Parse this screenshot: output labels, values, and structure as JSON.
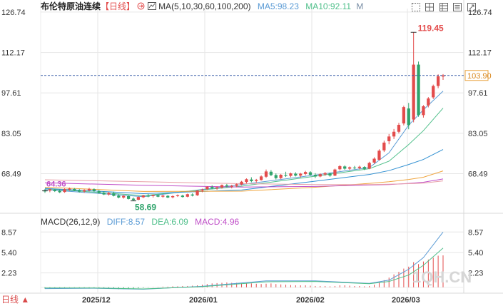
{
  "header": {
    "title": "布伦特原油连续",
    "period": "【日线】",
    "ma_label": "MA(5,10,30,60,100,200)",
    "ma5": "MA5:98.23",
    "ma10": "MA10:92.11",
    "ma_toggle": "M"
  },
  "macd_header": {
    "label": "MACD(26,12,9)",
    "diff": "DIFF:8.57",
    "dea": "DEA:6.09",
    "macd": "MACD:4.96"
  },
  "footer": {
    "period_button": "日线 ▲"
  },
  "watermark": "1QH.CN",
  "toolbar_icons": [
    "dotted-square-icon",
    "grid-icon",
    "table-icon",
    "list-icon",
    "settings-icon"
  ],
  "colors": {
    "up": "#e34c4c",
    "down": "#2fa36b",
    "ma5": "#5b9bd5",
    "ma10": "#4fbf8a",
    "ma30": "#2f8fd1",
    "ma60": "#f0a640",
    "ma100": "#c04fc8",
    "ma200": "#e8a0a8",
    "current_line": "#3a5fa8",
    "grid": "#e6e6e6"
  },
  "chart_data": [
    {
      "type": "candlestick",
      "title": "布伦特原油连续",
      "period": "日线",
      "ylim": [
        55,
        128
      ],
      "yticks": [
        "126.74",
        "112.17",
        "97.61",
        "83.05",
        "68.49"
      ],
      "x_ticks": [
        "2025/12",
        "2026/01",
        "2026/02",
        "2026/03"
      ],
      "current_price": "103.90",
      "max_label": "119.45",
      "min_label": "58.69",
      "left_label": "64.36",
      "candles": [
        [
          62.6,
          63.0,
          61.6,
          62.1
        ],
        [
          62.4,
          63.1,
          61.8,
          62.9
        ],
        [
          62.7,
          63.0,
          61.9,
          62.2
        ],
        [
          62.3,
          62.8,
          61.5,
          61.8
        ],
        [
          61.9,
          63.2,
          61.6,
          62.9
        ],
        [
          62.8,
          63.5,
          62.3,
          63.1
        ],
        [
          63.0,
          63.3,
          62.2,
          62.4
        ],
        [
          62.5,
          63.0,
          61.7,
          62.0
        ],
        [
          62.1,
          62.9,
          61.6,
          62.6
        ],
        [
          62.5,
          63.4,
          62.1,
          63.0
        ],
        [
          62.9,
          63.2,
          61.9,
          62.2
        ],
        [
          62.2,
          62.7,
          61.3,
          61.5
        ],
        [
          61.6,
          62.2,
          60.8,
          61.0
        ],
        [
          61.0,
          61.9,
          60.6,
          61.6
        ],
        [
          61.5,
          62.0,
          60.3,
          60.5
        ],
        [
          60.6,
          61.1,
          59.6,
          59.9
        ],
        [
          59.9,
          60.8,
          59.5,
          60.5
        ],
        [
          60.4,
          60.7,
          59.2,
          59.4
        ],
        [
          59.5,
          59.9,
          58.69,
          59.0
        ],
        [
          59.1,
          60.3,
          58.9,
          60.1
        ],
        [
          60.0,
          60.9,
          59.7,
          60.6
        ],
        [
          60.5,
          61.2,
          60.0,
          60.3
        ],
        [
          60.4,
          61.0,
          59.9,
          60.8
        ],
        [
          60.7,
          61.1,
          60.0,
          60.2
        ],
        [
          60.2,
          60.9,
          59.8,
          60.6
        ],
        [
          60.5,
          60.8,
          59.7,
          59.9
        ],
        [
          60.0,
          60.7,
          59.6,
          60.4
        ],
        [
          60.4,
          61.0,
          60.1,
          60.7
        ],
        [
          60.6,
          60.9,
          59.9,
          60.1
        ],
        [
          60.2,
          61.3,
          60.0,
          61.1
        ],
        [
          61.0,
          61.4,
          60.3,
          60.6
        ],
        [
          60.7,
          62.6,
          60.5,
          62.4
        ],
        [
          62.4,
          63.1,
          61.8,
          62.8
        ],
        [
          62.9,
          64.0,
          62.6,
          63.8
        ],
        [
          63.7,
          64.3,
          62.9,
          63.2
        ],
        [
          63.2,
          63.9,
          62.7,
          63.6
        ],
        [
          63.5,
          64.6,
          63.1,
          64.4
        ],
        [
          64.3,
          64.8,
          63.6,
          63.9
        ],
        [
          63.8,
          64.5,
          63.2,
          64.1
        ],
        [
          64.1,
          65.0,
          63.6,
          64.7
        ],
        [
          64.6,
          65.9,
          64.3,
          65.6
        ],
        [
          65.5,
          66.8,
          65.0,
          66.5
        ],
        [
          66.4,
          67.2,
          65.4,
          65.8
        ],
        [
          65.9,
          66.6,
          65.2,
          66.3
        ],
        [
          66.2,
          67.9,
          66.0,
          67.5
        ],
        [
          67.4,
          70.0,
          67.0,
          69.3
        ],
        [
          69.2,
          69.8,
          67.6,
          68.0
        ],
        [
          68.0,
          68.6,
          66.4,
          66.9
        ],
        [
          66.9,
          68.4,
          66.5,
          68.1
        ],
        [
          68.0,
          69.2,
          67.3,
          67.7
        ],
        [
          67.7,
          68.9,
          67.2,
          68.6
        ],
        [
          68.5,
          69.0,
          67.5,
          67.8
        ],
        [
          67.8,
          68.8,
          67.1,
          68.5
        ],
        [
          68.4,
          69.5,
          67.9,
          69.1
        ],
        [
          69.0,
          69.4,
          67.8,
          68.1
        ],
        [
          68.1,
          68.7,
          66.9,
          67.5
        ],
        [
          67.5,
          68.6,
          67.2,
          68.3
        ],
        [
          68.2,
          69.1,
          67.7,
          68.7
        ],
        [
          68.6,
          68.9,
          67.4,
          67.8
        ],
        [
          67.8,
          70.3,
          67.6,
          70.0
        ],
        [
          70.1,
          71.6,
          69.6,
          71.2
        ],
        [
          71.1,
          71.5,
          69.9,
          70.3
        ],
        [
          70.3,
          71.1,
          69.7,
          70.8
        ],
        [
          70.7,
          71.3,
          70.1,
          70.5
        ],
        [
          70.5,
          71.4,
          70.0,
          71.0
        ],
        [
          70.9,
          71.2,
          69.8,
          70.2
        ],
        [
          70.3,
          72.8,
          70.1,
          72.4
        ],
        [
          72.5,
          74.4,
          72.1,
          73.9
        ],
        [
          73.5,
          77.3,
          73.2,
          76.8
        ],
        [
          76.9,
          80.4,
          76.3,
          79.7
        ],
        [
          80.2,
          82.8,
          79.1,
          81.9
        ],
        [
          81.9,
          84.6,
          81.0,
          83.6
        ],
        [
          83.6,
          86.8,
          83.0,
          86.1
        ],
        [
          86.6,
          93.0,
          85.9,
          92.5
        ],
        [
          92.0,
          94.0,
          84.5,
          86.0
        ],
        [
          88.0,
          119.45,
          87.0,
          107.8
        ],
        [
          107.8,
          108.9,
          89.0,
          89.6
        ],
        [
          89.6,
          93.2,
          88.7,
          92.8
        ],
        [
          93.1,
          96.1,
          92.4,
          95.6
        ],
        [
          96.0,
          100.6,
          95.4,
          100.1
        ],
        [
          100.1,
          104.3,
          99.3,
          103.6
        ],
        [
          103.5,
          104.4,
          102.3,
          103.9
        ]
      ],
      "series": [
        {
          "name": "MA5",
          "color": "#5b9bd5",
          "points": [
            [
              0,
              62.8
            ],
            [
              20,
              60.2
            ],
            [
              40,
              64.6
            ],
            [
              55,
              68.0
            ],
            [
              66,
              70.7
            ],
            [
              70,
              76.0
            ],
            [
              74,
              86.0
            ],
            [
              77,
              91.5
            ],
            [
              81,
              98.23
            ]
          ]
        },
        {
          "name": "MA10",
          "color": "#4fbf8a",
          "points": [
            [
              0,
              63.1
            ],
            [
              20,
              60.6
            ],
            [
              40,
              64.0
            ],
            [
              55,
              67.6
            ],
            [
              66,
              70.3
            ],
            [
              70,
              73.0
            ],
            [
              74,
              79.0
            ],
            [
              77,
              84.0
            ],
            [
              81,
              92.11
            ]
          ]
        },
        {
          "name": "MA30",
          "color": "#2f8fd1",
          "points": [
            [
              0,
              63.2
            ],
            [
              20,
              61.3
            ],
            [
              40,
              62.6
            ],
            [
              55,
              65.8
            ],
            [
              66,
              68.2
            ],
            [
              70,
              69.6
            ],
            [
              74,
              71.8
            ],
            [
              77,
              73.6
            ],
            [
              81,
              77.2
            ]
          ]
        },
        {
          "name": "MA60",
          "color": "#f0a640",
          "points": [
            [
              0,
              63.6
            ],
            [
              20,
              62.1
            ],
            [
              40,
              62.2
            ],
            [
              55,
              63.6
            ],
            [
              66,
              65.0
            ],
            [
              70,
              65.6
            ],
            [
              74,
              66.4
            ],
            [
              77,
              67.2
            ],
            [
              81,
              69.5
            ]
          ]
        },
        {
          "name": "MA100",
          "color": "#c04fc8",
          "points": [
            [
              0,
              65.2
            ],
            [
              20,
              64.3
            ],
            [
              40,
              63.7
            ],
            [
              55,
              63.9
            ],
            [
              66,
              64.4
            ],
            [
              70,
              64.6
            ],
            [
              74,
              65.0
            ],
            [
              77,
              65.4
            ],
            [
              81,
              66.6
            ]
          ]
        },
        {
          "name": "MA200",
          "color": "#e8a0a8",
          "points": [
            [
              0,
              66.3
            ],
            [
              20,
              65.6
            ],
            [
              40,
              64.9
            ],
            [
              55,
              64.6
            ],
            [
              66,
              64.6
            ],
            [
              70,
              64.7
            ],
            [
              74,
              64.9
            ],
            [
              77,
              65.1
            ],
            [
              81,
              65.9
            ]
          ]
        }
      ]
    },
    {
      "type": "macd",
      "title": "MACD(26,12,9)",
      "ylim": [
        -0.8,
        9.6
      ],
      "yticks": [
        "8.57",
        "5.40",
        "2.23"
      ],
      "series": [
        {
          "name": "DIFF",
          "color": "#5b9bd5",
          "points": [
            [
              0,
              -0.2
            ],
            [
              10,
              -0.15
            ],
            [
              20,
              -0.3
            ],
            [
              32,
              0.15
            ],
            [
              45,
              1.0
            ],
            [
              55,
              1.0
            ],
            [
              66,
              0.6
            ],
            [
              70,
              1.1
            ],
            [
              74,
              2.8
            ],
            [
              77,
              4.6
            ],
            [
              81,
              8.57
            ]
          ]
        },
        {
          "name": "DEA",
          "color": "#4fbf8a",
          "points": [
            [
              0,
              -0.1
            ],
            [
              10,
              -0.1
            ],
            [
              20,
              -0.25
            ],
            [
              32,
              0.1
            ],
            [
              45,
              0.85
            ],
            [
              55,
              0.9
            ],
            [
              66,
              0.55
            ],
            [
              70,
              0.9
            ],
            [
              74,
              1.9
            ],
            [
              77,
              3.4
            ],
            [
              81,
              6.09
            ]
          ]
        }
      ],
      "histogram": [
        -0.2,
        -0.2,
        -0.15,
        -0.1,
        -0.1,
        -0.05,
        -0.05,
        -0.1,
        -0.15,
        -0.2,
        -0.1,
        -0.1,
        -0.15,
        -0.2,
        -0.25,
        -0.3,
        -0.3,
        -0.25,
        -0.2,
        -0.15,
        -0.1,
        -0.05,
        0.05,
        0.05,
        0.1,
        0.1,
        0.15,
        0.15,
        0.2,
        0.2,
        0.25,
        0.3,
        0.4,
        0.5,
        0.6,
        0.65,
        0.7,
        0.75,
        0.7,
        0.7,
        0.65,
        0.6,
        0.6,
        0.55,
        0.5,
        0.55,
        0.6,
        0.5,
        0.45,
        0.4,
        0.35,
        0.3,
        0.3,
        0.3,
        0.25,
        0.2,
        0.2,
        0.2,
        0.15,
        0.2,
        0.3,
        0.3,
        0.25,
        0.2,
        0.2,
        0.15,
        0.2,
        0.4,
        0.7,
        1.1,
        1.5,
        2.0,
        2.4,
        2.9,
        3.2,
        3.9,
        3.6,
        4.0,
        4.3,
        4.6,
        4.9,
        4.96
      ]
    }
  ]
}
